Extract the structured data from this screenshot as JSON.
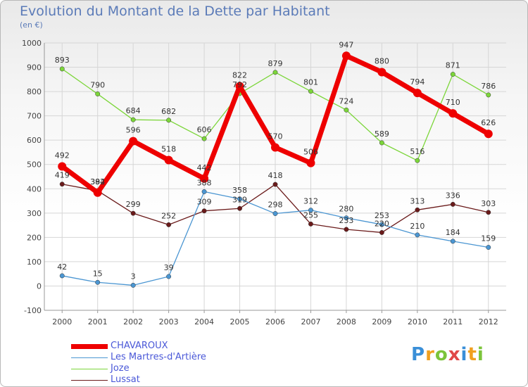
{
  "title": "Evolution du Montant de la Dette par Habitant",
  "subtitle": "(en €)",
  "logo_text": "Proxiti",
  "chart_data": {
    "type": "line",
    "title": "Evolution du Montant de la Dette par Habitant",
    "subtitle": "(en €)",
    "xlabel": "",
    "ylabel": "",
    "x": [
      "2000",
      "2001",
      "2002",
      "2003",
      "2004",
      "2005",
      "2006",
      "2007",
      "2008",
      "2009",
      "2010",
      "2011",
      "2012"
    ],
    "ylim": [
      -100,
      1000
    ],
    "yticks": [
      "-100",
      "0",
      "100",
      "200",
      "300",
      "400",
      "500",
      "600",
      "700",
      "800",
      "900",
      "1000"
    ],
    "grid": true,
    "legend_position": "bottom-left",
    "series": [
      {
        "name": "CHAVAROUX",
        "color": "#ee0000",
        "values": [
          492,
          384,
          596,
          518,
          442,
          822,
          570,
          506,
          947,
          880,
          794,
          710,
          626
        ],
        "labels": [
          "492",
          "384",
          "596",
          "518",
          "442",
          "822",
          "570",
          "506",
          "947",
          "880",
          "794",
          "710",
          "626"
        ]
      },
      {
        "name": "Les Martres-d'Artière",
        "color": "#4b96d2",
        "values": [
          42,
          15,
          3,
          39,
          388,
          358,
          298,
          312,
          280,
          253,
          210,
          184,
          159
        ],
        "labels": [
          "42",
          "15",
          "3",
          "39",
          "388",
          "358",
          "298",
          "312",
          "280",
          "253",
          "210",
          "184",
          "159"
        ]
      },
      {
        "name": "Joze",
        "color": "#7cd63a",
        "values": [
          893,
          790,
          684,
          682,
          606,
          792,
          879,
          801,
          724,
          589,
          516,
          871,
          786
        ],
        "labels": [
          "893",
          "790",
          "684",
          "682",
          "606",
          "792",
          "879",
          "801",
          "724",
          "589",
          "516",
          "871",
          "786"
        ]
      },
      {
        "name": "Lussat",
        "color": "#6a1a1a",
        "values": [
          419,
          392,
          299,
          252,
          309,
          319,
          418,
          255,
          233,
          220,
          313,
          336,
          303
        ],
        "labels": [
          "419",
          "392",
          "299",
          "252",
          "309",
          "319",
          "418",
          "255",
          "233",
          "220",
          "313",
          "336",
          "303"
        ]
      }
    ]
  }
}
